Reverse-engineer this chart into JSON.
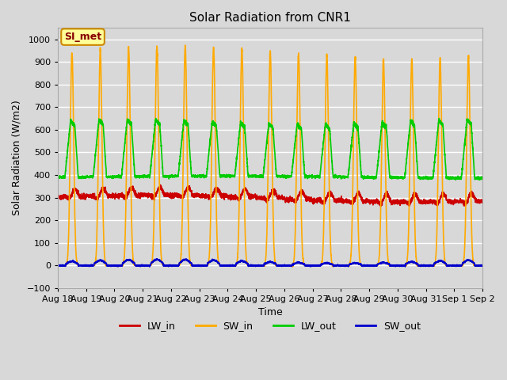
{
  "title": "Solar Radiation from CNR1",
  "xlabel": "Time",
  "ylabel": "Solar Radiation (W/m2)",
  "ylim": [
    -100,
    1050
  ],
  "yticks": [
    -100,
    0,
    100,
    200,
    300,
    400,
    500,
    600,
    700,
    800,
    900,
    1000
  ],
  "num_days": 15,
  "start_day": 18,
  "background_color": "#d8d8d8",
  "plot_bg_color": "#d8d8d8",
  "grid_color": "white",
  "series": {
    "LW_in": {
      "color": "#cc0000",
      "lw": 1.2
    },
    "SW_in": {
      "color": "#ffaa00",
      "lw": 1.2
    },
    "LW_out": {
      "color": "#00cc00",
      "lw": 1.2
    },
    "SW_out": {
      "color": "#0000cc",
      "lw": 1.2
    }
  },
  "legend_label": "SI_met",
  "annotation_bg": "#ffff99",
  "annotation_border": "#cc8800",
  "annotation_text_color": "#880000"
}
